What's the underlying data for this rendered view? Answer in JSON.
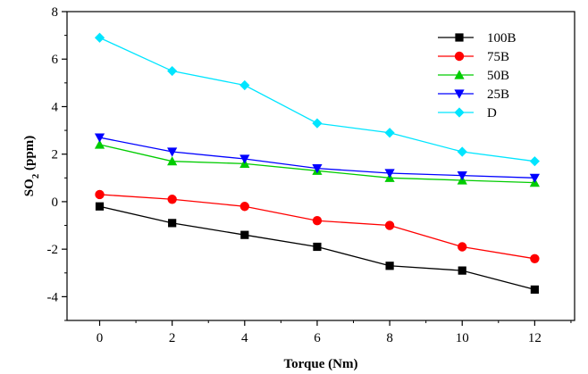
{
  "chart_data": {
    "type": "line",
    "title": "",
    "xlabel": "Torque (Nm)",
    "ylabel_main": "SO",
    "ylabel_sub": "2",
    "ylabel_unit": " (ppm)",
    "xlim": [
      -0.9,
      13.1
    ],
    "ylim": [
      -5,
      8
    ],
    "x_ticks": [
      "0",
      "2",
      "4",
      "6",
      "8",
      "10",
      "12"
    ],
    "y_ticks": [
      "-4",
      "-2",
      "0",
      "2",
      "4",
      "6",
      "8"
    ],
    "x": [
      0,
      2,
      4,
      6,
      8,
      10,
      12
    ],
    "grid": false,
    "legend_position": "top-right",
    "series": [
      {
        "name": "100B",
        "color": "#000000",
        "marker": "square",
        "values": [
          -0.2,
          -0.9,
          -1.4,
          -1.9,
          -2.7,
          -2.9,
          -3.7
        ]
      },
      {
        "name": "75B",
        "color": "#ff0000",
        "marker": "circle",
        "values": [
          0.3,
          0.1,
          -0.2,
          -0.8,
          -1.0,
          -1.9,
          -2.4
        ]
      },
      {
        "name": "50B",
        "color": "#00cc00",
        "marker": "triangle-up",
        "values": [
          2.4,
          1.7,
          1.6,
          1.3,
          1.0,
          0.9,
          0.8
        ]
      },
      {
        "name": "25B",
        "color": "#0000ff",
        "marker": "triangle-down",
        "values": [
          2.7,
          2.1,
          1.8,
          1.4,
          1.2,
          1.1,
          1.0
        ]
      },
      {
        "name": "D",
        "color": "#00e5ff",
        "marker": "diamond",
        "values": [
          6.9,
          5.5,
          4.9,
          3.3,
          2.9,
          2.1,
          1.7
        ]
      }
    ]
  }
}
